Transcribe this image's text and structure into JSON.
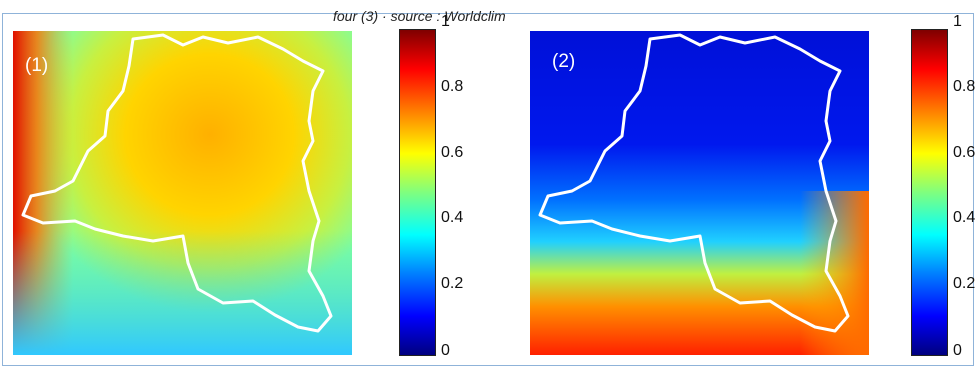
{
  "caption": "four (3) · source : Worldclim",
  "colors": {
    "frame_border": "#8fb3d9",
    "boundary": "#ffffff",
    "jet_scale": [
      "#00007f",
      "#0000ff",
      "#007fff",
      "#00ffff",
      "#7fff7f",
      "#ffff00",
      "#ff7f00",
      "#ff0000",
      "#7f0000"
    ]
  },
  "chart_data": [
    {
      "type": "heatmap",
      "panel_label": "(1)",
      "colormap": "jet",
      "colorbar": {
        "min": 0,
        "max": 1,
        "ticks": [
          "0",
          "0.2",
          "0.4",
          "0.6",
          "0.8",
          "1"
        ]
      },
      "description_values": {
        "interior": 0.65,
        "west_edge": 0.85,
        "south": 0.35
      }
    },
    {
      "type": "heatmap",
      "panel_label": "(2)",
      "colormap": "jet",
      "colorbar": {
        "min": 0,
        "max": 1,
        "ticks": [
          "0",
          "0.2",
          "0.4",
          "0.6",
          "0.8",
          "1"
        ]
      },
      "description_values": {
        "north": 0.1,
        "south": 0.85,
        "east_edge": 0.75
      }
    }
  ]
}
